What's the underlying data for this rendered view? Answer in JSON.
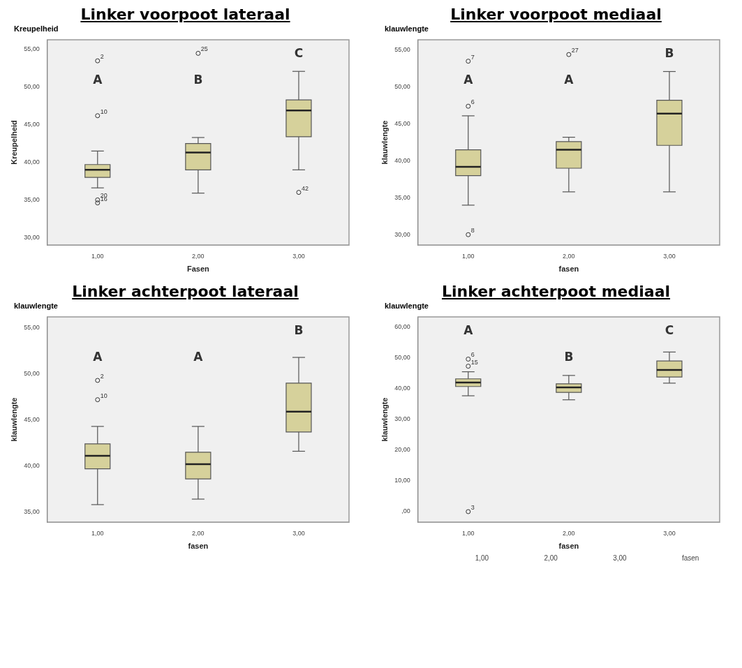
{
  "chart_data": [
    {
      "type": "box",
      "title": "Linker voorpoot lateraal",
      "subtitle": "Kreupelheid",
      "ylabel": "Kreupelheid",
      "xlabel": "Fasen",
      "categories": [
        "1,00",
        "2,00",
        "3,00"
      ],
      "color": "#d6d19b",
      "marker": "circle",
      "grid": false,
      "legend": false,
      "ylim": [
        29,
        56.3
      ],
      "yticks": [
        {
          "value": 30,
          "label": "30,00"
        },
        {
          "value": 35,
          "label": "35,00"
        },
        {
          "value": 40,
          "label": "40,00"
        },
        {
          "value": 45,
          "label": "45,00"
        },
        {
          "value": 50,
          "label": "50,00"
        },
        {
          "value": 55,
          "label": "55,00"
        }
      ],
      "boxes": [
        {
          "low": 36.6,
          "q1": 38.0,
          "median": 39.0,
          "q3": 39.7,
          "high": 41.5,
          "outliers": [
            53.5,
            46.2,
            35.0,
            34.6
          ]
        },
        {
          "low": 35.9,
          "q1": 39.0,
          "median": 41.3,
          "q3": 42.5,
          "high": 43.3,
          "outliers": [
            54.5
          ]
        },
        {
          "low": 39.0,
          "q1": 43.4,
          "median": 46.9,
          "q3": 48.3,
          "high": 52.1,
          "outliers": [
            36.0
          ]
        }
      ],
      "annotations": [
        "A",
        "B",
        "C",
        "2",
        "10",
        "20",
        "16",
        "25",
        "42"
      ]
    },
    {
      "type": "box",
      "title": "Linker voorpoot mediaal",
      "subtitle": "klauwlengte",
      "ylabel": "klauwlengte",
      "xlabel": "fasen",
      "categories": [
        "1,00",
        "2,00",
        "3,00"
      ],
      "color": "#d6d19b",
      "marker": "circle",
      "grid": false,
      "legend": false,
      "ylim": [
        28.6,
        56.4
      ],
      "yticks": [
        {
          "value": 30,
          "label": "30,00"
        },
        {
          "value": 35,
          "label": "35,00"
        },
        {
          "value": 40,
          "label": "40,00"
        },
        {
          "value": 45,
          "label": "45,00"
        },
        {
          "value": 50,
          "label": "50,00"
        },
        {
          "value": 55,
          "label": "55,00"
        }
      ],
      "boxes": [
        {
          "low": 34.0,
          "q1": 38.0,
          "median": 39.2,
          "q3": 41.5,
          "high": 46.1,
          "outliers": [
            53.5,
            47.4,
            30.0
          ]
        },
        {
          "low": 35.8,
          "q1": 39.0,
          "median": 41.5,
          "q3": 42.6,
          "high": 43.2,
          "outliers": [
            54.4
          ]
        },
        {
          "low": 35.8,
          "q1": 42.1,
          "median": 46.4,
          "q3": 48.2,
          "high": 52.1
        }
      ],
      "annotations": [
        "A",
        "A",
        "B",
        "7",
        "6",
        "8",
        "27"
      ]
    },
    {
      "type": "box",
      "title": "Linker achterpoot lateraal",
      "subtitle": "klauwlengte",
      "ylabel": "klauwlengte",
      "xlabel": "fasen",
      "categories": [
        "1,00",
        "2,00",
        "3,00"
      ],
      "color": "#d6d19b",
      "marker": "circle",
      "grid": false,
      "legend": false,
      "ylim": [
        33.9,
        56.2
      ],
      "yticks": [
        {
          "value": 35,
          "label": "35,00"
        },
        {
          "value": 40,
          "label": "40,00"
        },
        {
          "value": 45,
          "label": "45,00"
        },
        {
          "value": 50,
          "label": "50,00"
        },
        {
          "value": 55,
          "label": "55,00"
        }
      ],
      "boxes": [
        {
          "low": 35.8,
          "q1": 39.7,
          "median": 41.1,
          "q3": 42.4,
          "high": 44.3,
          "outliers": [
            49.3,
            47.2
          ]
        },
        {
          "low": 36.4,
          "q1": 38.6,
          "median": 40.2,
          "q3": 41.5,
          "high": 44.3
        },
        {
          "low": 41.6,
          "q1": 43.7,
          "median": 45.9,
          "q3": 49.0,
          "high": 51.8
        }
      ],
      "annotations": [
        "A",
        "A",
        "B",
        "2",
        "10"
      ]
    },
    {
      "type": "box",
      "title": "Linker achterpoot mediaal",
      "subtitle": "klauwlengte",
      "ylabel": "klauwlengte",
      "xlabel": "fasen",
      "categories": [
        "1,00",
        "2,00",
        "3,00"
      ],
      "color": "#d6d19b",
      "marker": "circle",
      "grid": false,
      "legend": false,
      "ylim": [
        -3.4,
        63.2
      ],
      "yticks": [
        {
          "value": 0,
          "label": ",00"
        },
        {
          "value": 10,
          "label": "10,00"
        },
        {
          "value": 20,
          "label": "20,00"
        },
        {
          "value": 30,
          "label": "30,00"
        },
        {
          "value": 40,
          "label": "40,00"
        },
        {
          "value": 50,
          "label": "50,00"
        },
        {
          "value": 60,
          "label": "60,00"
        }
      ],
      "boxes": [
        {
          "low": 37.6,
          "q1": 40.6,
          "median": 41.9,
          "q3": 43.1,
          "high": 45.4,
          "outliers": [
            49.5,
            47.2,
            0
          ]
        },
        {
          "low": 36.3,
          "q1": 38.7,
          "median": 40.3,
          "q3": 41.5,
          "high": 44.2
        },
        {
          "low": 41.7,
          "q1": 43.7,
          "median": 46.0,
          "q3": 48.9,
          "high": 51.8
        }
      ],
      "annotations": [
        "A",
        "B",
        "C",
        "6",
        "15",
        "3",
        "1,00",
        "2,00",
        "3,00",
        "fasen"
      ]
    }
  ]
}
